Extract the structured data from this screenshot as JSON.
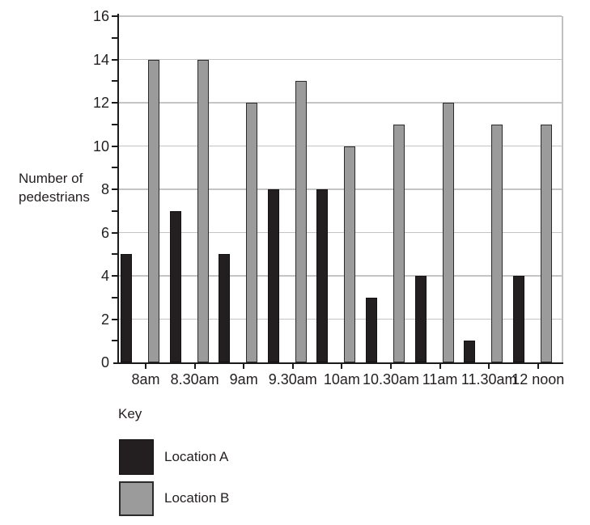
{
  "chart_data": {
    "type": "bar",
    "title": "",
    "xlabel": "",
    "ylabel": "Number of pedestrians",
    "ylim": [
      0,
      16
    ],
    "y_tick_labels": [
      0,
      2,
      4,
      6,
      8,
      10,
      12,
      14,
      16
    ],
    "y_minor_tick_step": 1,
    "y_gridline_values": [
      2,
      4,
      6,
      8,
      10,
      12,
      14,
      16
    ],
    "grid": "horizontal",
    "categories": [
      "8am",
      "8.30am",
      "9am",
      "9.30am",
      "10am",
      "10.30am",
      "11am",
      "11.30am",
      "12 noon"
    ],
    "series": [
      {
        "name": "Location A",
        "fill": "#231f20",
        "border": "#141112",
        "values": [
          5,
          7,
          5,
          8,
          8,
          3,
          4,
          1,
          4
        ]
      },
      {
        "name": "Location B",
        "fill": "#9b9b9b",
        "border": "#2c2a2b",
        "values": [
          14,
          14,
          12,
          13,
          10,
          11,
          12,
          11,
          11
        ]
      }
    ],
    "legend": {
      "title": "Key",
      "position": "bottom-left",
      "entries": [
        "Location A",
        "Location B"
      ]
    }
  },
  "colors": {
    "background": "#ffffff",
    "gridline": "#c4c4c4",
    "axis": "#1b1b1b",
    "text": "#231f20",
    "plot_right_border": "#c0c0c0"
  }
}
